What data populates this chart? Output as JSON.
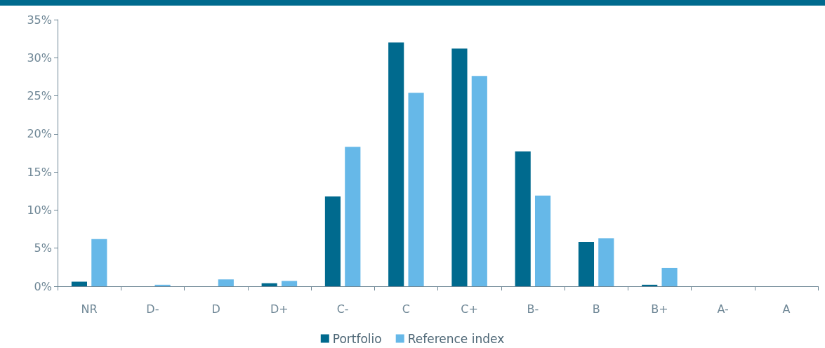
{
  "chart_data": {
    "type": "bar",
    "categories": [
      "NR",
      "D-",
      "D",
      "D+",
      "C-",
      "C",
      "C+",
      "B-",
      "B",
      "B+",
      "A-",
      "A"
    ],
    "series": [
      {
        "name": "Portfolio",
        "color": "#006a8e",
        "values": [
          0.6,
          0,
          0,
          0.4,
          11.8,
          32.0,
          31.2,
          17.7,
          5.8,
          0.2,
          0,
          0
        ]
      },
      {
        "name": "Reference index",
        "color": "#66b8e8",
        "values": [
          6.2,
          0.2,
          0.9,
          0.7,
          18.3,
          25.4,
          27.6,
          11.9,
          6.3,
          2.4,
          0,
          0
        ]
      }
    ],
    "ylim": [
      0,
      35
    ],
    "yticks": [
      {
        "value": 0,
        "label": "0%"
      },
      {
        "value": 5,
        "label": "5%"
      },
      {
        "value": 10,
        "label": "10%"
      },
      {
        "value": 15,
        "label": "15%"
      },
      {
        "value": 20,
        "label": "20%"
      },
      {
        "value": 25,
        "label": "25%"
      },
      {
        "value": 30,
        "label": "30%"
      },
      {
        "value": 35,
        "label": "35%"
      }
    ],
    "grid": false,
    "legend": "bottom"
  }
}
